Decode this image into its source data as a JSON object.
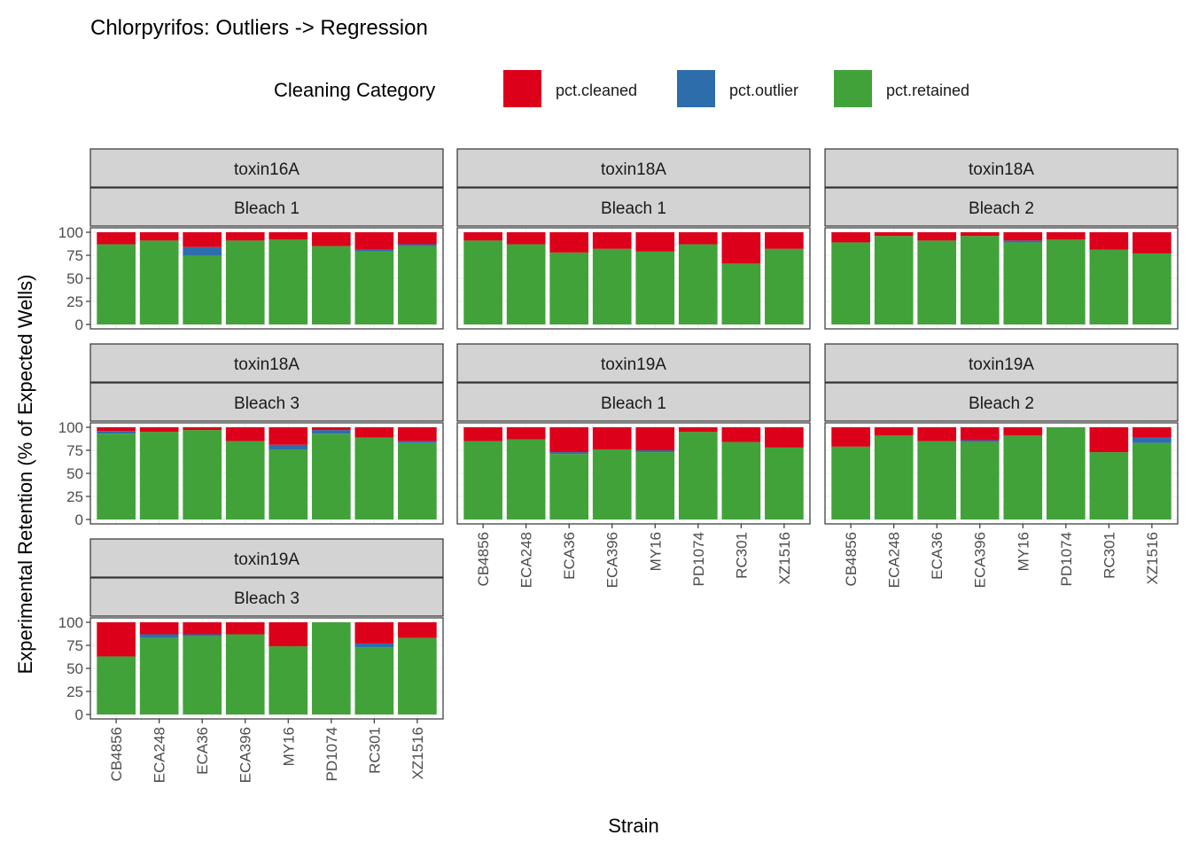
{
  "chart_data": {
    "type": "bar",
    "stacked": true,
    "title": "Chlorpyrifos: Outliers -> Regression",
    "xlabel": "Strain",
    "ylabel": "Experimental Retention (% of Expected Wells)",
    "ylim": [
      0,
      100
    ],
    "yticks": [
      "0",
      "25",
      "50",
      "75",
      "100"
    ],
    "grid": true,
    "legend": {
      "title": "Cleaning Category",
      "placement": "top",
      "entries": [
        {
          "name": "pct.cleaned",
          "color": "#DC001A"
        },
        {
          "name": "pct.outlier",
          "color": "#2E6DAB"
        },
        {
          "name": "pct.retained",
          "color": "#41A23A"
        }
      ]
    },
    "categories": [
      "CB4856",
      "ECA248",
      "ECA36",
      "ECA396",
      "MY16",
      "PD1074",
      "RC301",
      "XZ1516"
    ],
    "panels": [
      {
        "toxin": "toxin16A",
        "bleach": "Bleach 1",
        "retained": [
          87,
          91,
          75,
          91,
          92,
          85,
          79,
          85
        ],
        "outlier": [
          0,
          0,
          9,
          0,
          0,
          0,
          2,
          2
        ],
        "cleaned": [
          13,
          9,
          16,
          9,
          8,
          15,
          19,
          13
        ]
      },
      {
        "toxin": "toxin18A",
        "bleach": "Bleach 1",
        "retained": [
          91,
          87,
          78,
          82,
          79,
          87,
          66,
          82
        ],
        "outlier": [
          0,
          0,
          0,
          0,
          0,
          0,
          0,
          0
        ],
        "cleaned": [
          9,
          13,
          22,
          18,
          21,
          13,
          34,
          18
        ]
      },
      {
        "toxin": "toxin18A",
        "bleach": "Bleach 2",
        "retained": [
          89,
          96,
          91,
          96,
          89,
          92,
          81,
          77
        ],
        "outlier": [
          0,
          0,
          0,
          0,
          2,
          0,
          0,
          0
        ],
        "cleaned": [
          11,
          4,
          9,
          4,
          9,
          8,
          19,
          23
        ]
      },
      {
        "toxin": "toxin18A",
        "bleach": "Bleach 3",
        "retained": [
          93,
          95,
          97,
          85,
          76,
          93,
          89,
          83
        ],
        "outlier": [
          3,
          0,
          0,
          0,
          5,
          4,
          0,
          2
        ],
        "cleaned": [
          4,
          5,
          3,
          15,
          19,
          3,
          11,
          15
        ]
      },
      {
        "toxin": "toxin19A",
        "bleach": "Bleach 1",
        "retained": [
          85,
          87,
          71,
          76,
          73,
          95,
          84,
          78
        ],
        "outlier": [
          0,
          0,
          2,
          0,
          2,
          0,
          0,
          0
        ],
        "cleaned": [
          15,
          13,
          27,
          24,
          25,
          5,
          16,
          22
        ]
      },
      {
        "toxin": "toxin19A",
        "bleach": "Bleach 2",
        "retained": [
          79,
          91,
          85,
          84,
          91,
          100,
          73,
          83
        ],
        "outlier": [
          0,
          0,
          0,
          2,
          0,
          0,
          0,
          6
        ],
        "cleaned": [
          21,
          9,
          15,
          14,
          9,
          0,
          27,
          11
        ]
      },
      {
        "toxin": "toxin19A",
        "bleach": "Bleach 3",
        "retained": [
          63,
          83,
          85,
          87,
          74,
          100,
          73,
          83
        ],
        "outlier": [
          0,
          4,
          2,
          0,
          0,
          0,
          4,
          0
        ],
        "cleaned": [
          37,
          13,
          13,
          13,
          26,
          0,
          23,
          17
        ]
      }
    ]
  }
}
